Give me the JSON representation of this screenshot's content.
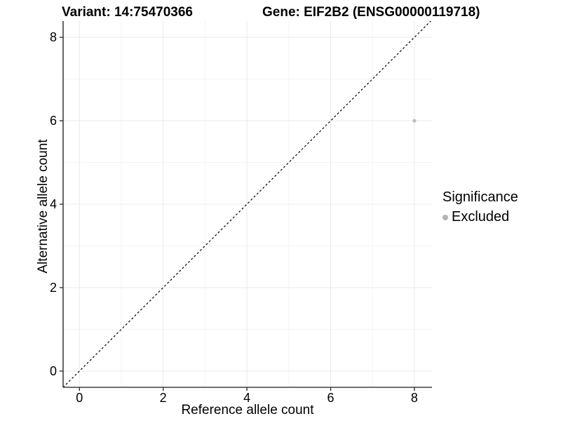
{
  "titles": {
    "variant": "Variant: 14:75470366",
    "gene": "Gene: EIF2B2 (ENSG00000119718)"
  },
  "axes": {
    "x_label": "Reference allele count",
    "y_label": "Alternative allele count"
  },
  "legend": {
    "title": "Significance",
    "items": [
      {
        "label": "Excluded",
        "color": "#b3b3b3"
      }
    ]
  },
  "colors": {
    "background": "#ffffff",
    "axis_line": "#404040",
    "tick_mark": "#333333",
    "tick_label": "#000000",
    "grid_major": "#e9e9e9",
    "grid_minor": "#f4f4f4",
    "point": "#bdbdbd",
    "identity_line": "#000000"
  },
  "chart_data": {
    "type": "scatter",
    "title": "Variant: 14:75470366 — Gene: EIF2B2 (ENSG00000119718)",
    "xlabel": "Reference allele count",
    "ylabel": "Alternative allele count",
    "xlim": [
      -0.39,
      8.42
    ],
    "ylim": [
      -0.39,
      8.39
    ],
    "x_ticks": [
      0,
      2,
      4,
      6,
      8
    ],
    "y_ticks": [
      0,
      2,
      4,
      6,
      8
    ],
    "x_minor_ticks": [
      1,
      3,
      5,
      7
    ],
    "y_minor_ticks": [
      1,
      3,
      5,
      7
    ],
    "grid": true,
    "legend_position": "right",
    "series": [
      {
        "name": "Excluded",
        "color": "#bdbdbd",
        "points": [
          {
            "x": 8,
            "y": 6
          }
        ],
        "point_radius": 2.6
      }
    ],
    "reference_line": {
      "kind": "identity",
      "slope": 1,
      "intercept": 0,
      "style": "dashed",
      "color": "#000000"
    }
  }
}
